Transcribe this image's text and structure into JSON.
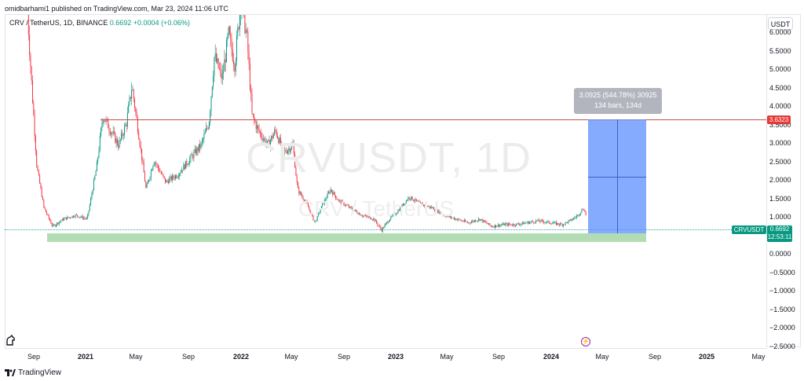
{
  "header": {
    "published_text": "omidbarhami1 published on TradingView.com, Mar 23, 2024 11:06 UTC"
  },
  "legend": {
    "symbol_text": "CRV / TetherUS, 1D, BINANCE",
    "last_price": "0.6692",
    "change": "+0.0004 (+0.06%)"
  },
  "watermark": {
    "main": "CRVUSDT, 1D",
    "sub": "CRV / TetherUS"
  },
  "price_axis": {
    "currency": "USDT",
    "ticks": [
      "6.0000",
      "5.5000",
      "5.0000",
      "4.5000",
      "4.0000",
      "3.5000",
      "3.0000",
      "2.5000",
      "2.0000",
      "1.5000",
      "1.0000",
      "0.5000",
      "0.0000",
      "−0.5000",
      "−1.0000",
      "−1.5000",
      "−2.0000",
      "−2.5000"
    ]
  },
  "time_axis": {
    "ticks": [
      {
        "label": "Sep",
        "bold": false
      },
      {
        "label": "2021",
        "bold": true
      },
      {
        "label": "May",
        "bold": false
      },
      {
        "label": "Sep",
        "bold": false
      },
      {
        "label": "2022",
        "bold": true
      },
      {
        "label": "May",
        "bold": false
      },
      {
        "label": "Sep",
        "bold": false
      },
      {
        "label": "2023",
        "bold": true
      },
      {
        "label": "May",
        "bold": false
      },
      {
        "label": "Sep",
        "bold": false
      },
      {
        "label": "2024",
        "bold": true
      },
      {
        "label": "May",
        "bold": false
      },
      {
        "label": "Sep",
        "bold": false
      },
      {
        "label": "2025",
        "bold": true
      },
      {
        "label": "May",
        "bold": false
      }
    ]
  },
  "annotations": {
    "measure_line1": "3.0925 (544.78%) 30925",
    "measure_line2": "134 bars, 134d",
    "resistance_price": "3.6323",
    "symbol_badge": "CRVUSDT",
    "price_badge_value": "0.6692",
    "price_badge_countdown": "12:53:11"
  },
  "footer": {
    "brand": "TradingView"
  },
  "colors": {
    "up": "#089981",
    "down": "#f23645",
    "resistance": "#e53935",
    "measure": "#5c8fff",
    "support_zone": "#a5d6a7"
  },
  "icons": {
    "left_tool": "tradingview-horse-icon",
    "event": "lightning-icon",
    "footer": "tradingview-logo-icon"
  }
}
